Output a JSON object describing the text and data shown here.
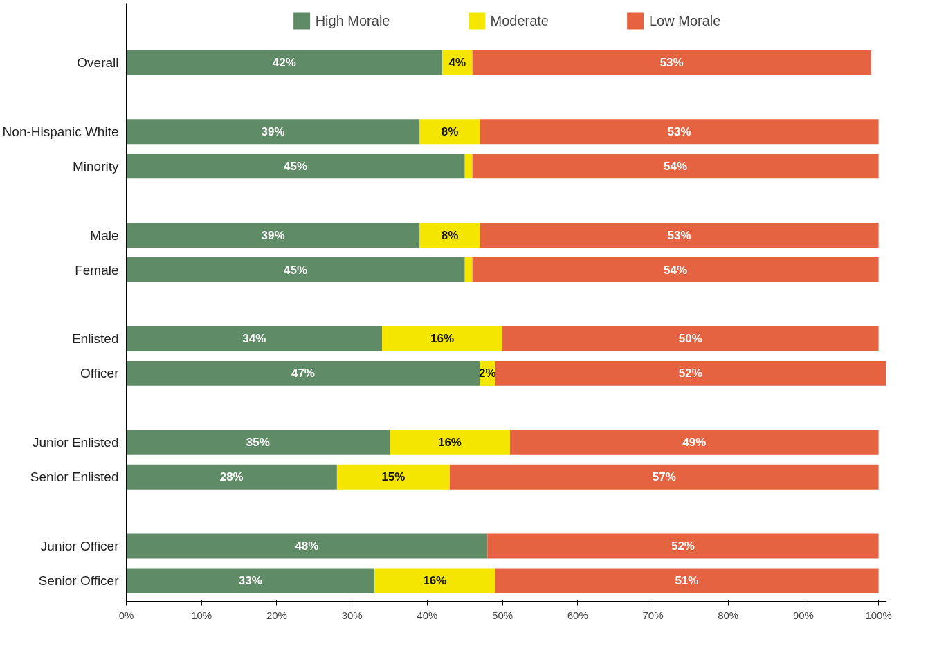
{
  "chart_data": {
    "type": "bar",
    "orientation": "horizontal",
    "stacked": true,
    "legend": "top",
    "grid": false,
    "categories": [
      "Overall",
      null,
      "Non-Hispanic White",
      "Minority",
      null,
      "Male",
      "Female",
      null,
      "Enlisted",
      "Officer",
      null,
      "Junior Enlisted",
      "Senior Enlisted",
      null,
      "Junior Officer",
      "Senior Officer"
    ],
    "series": [
      {
        "name": "High Morale",
        "color": "#5f8b66",
        "values": [
          42,
          null,
          39,
          45,
          null,
          39,
          45,
          null,
          34,
          47,
          null,
          35,
          28,
          null,
          48,
          33
        ],
        "value_labels": [
          "42%",
          null,
          "39%",
          "45%",
          null,
          "39%",
          "45%",
          null,
          "34%",
          "47%",
          null,
          "35%",
          "28%",
          null,
          "48%",
          "33%"
        ]
      },
      {
        "name": "Moderate",
        "color": "#f5e600",
        "values": [
          4,
          null,
          8,
          1,
          null,
          8,
          1,
          null,
          16,
          2,
          null,
          16,
          15,
          null,
          0,
          16
        ],
        "value_labels": [
          "4%",
          null,
          "8%",
          null,
          null,
          "8%",
          null,
          null,
          "16%",
          "2%",
          null,
          "16%",
          "15%",
          null,
          null,
          "16%"
        ]
      },
      {
        "name": "Low Morale",
        "color": "#e66342",
        "values": [
          53,
          null,
          53,
          54,
          null,
          53,
          54,
          null,
          50,
          52,
          null,
          49,
          57,
          null,
          52,
          51
        ],
        "value_labels": [
          "53%",
          null,
          "53%",
          "54%",
          null,
          "53%",
          "54%",
          null,
          "50%",
          "52%",
          null,
          "49%",
          "57%",
          null,
          "52%",
          "51%"
        ]
      }
    ],
    "xlim": [
      0,
      101
    ],
    "xticks": [
      {
        "value": 0,
        "label": "0%"
      },
      {
        "value": 10,
        "label": "10%"
      },
      {
        "value": 20,
        "label": "20%"
      },
      {
        "value": 30,
        "label": "30%"
      },
      {
        "value": 40,
        "label": "40%"
      },
      {
        "value": 50,
        "label": "50%"
      },
      {
        "value": 60,
        "label": "60%"
      },
      {
        "value": 70,
        "label": "70%"
      },
      {
        "value": 80,
        "label": "80%"
      },
      {
        "value": 90,
        "label": "90%"
      },
      {
        "value": 100,
        "label": "100%"
      }
    ]
  }
}
